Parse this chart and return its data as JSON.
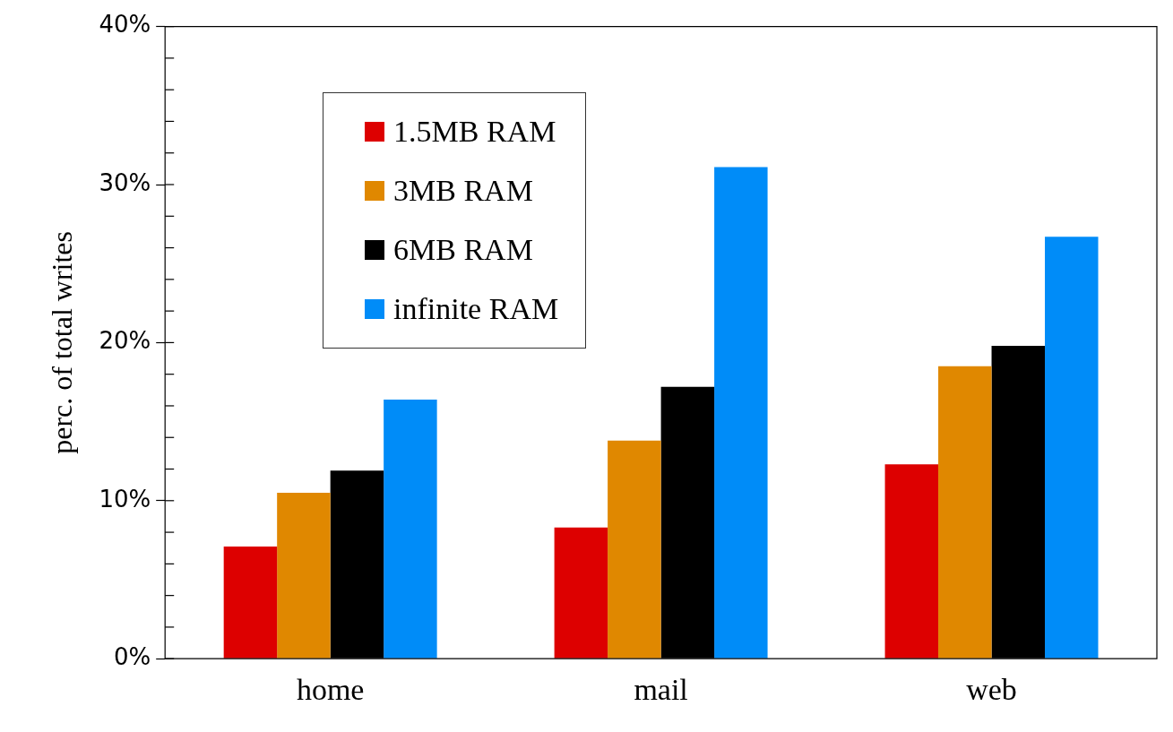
{
  "chart_data": {
    "type": "bar",
    "ylabel": "perc. of total writes",
    "categories": [
      "home",
      "mail",
      "web"
    ],
    "series": [
      {
        "name": "1.5MB RAM",
        "color": "#dd0000",
        "values": [
          7.1,
          8.3,
          12.3
        ]
      },
      {
        "name": "3MB RAM",
        "color": "#e08800",
        "values": [
          10.5,
          13.8,
          18.5
        ]
      },
      {
        "name": "6MB RAM",
        "color": "#000000",
        "values": [
          11.9,
          17.2,
          19.8
        ]
      },
      {
        "name": "infinite RAM",
        "color": "#008cf8",
        "values": [
          16.4,
          31.1,
          26.7
        ]
      }
    ],
    "ylim": [
      0,
      40
    ],
    "yticks": [
      {
        "value": 0,
        "label": "0%"
      },
      {
        "value": 2,
        "label": null
      },
      {
        "value": 4,
        "label": null
      },
      {
        "value": 6,
        "label": null
      },
      {
        "value": 8,
        "label": null
      },
      {
        "value": 10,
        "label": "10%"
      },
      {
        "value": 12,
        "label": null
      },
      {
        "value": 14,
        "label": null
      },
      {
        "value": 16,
        "label": null
      },
      {
        "value": 18,
        "label": null
      },
      {
        "value": 20,
        "label": "20%"
      },
      {
        "value": 22,
        "label": null
      },
      {
        "value": 24,
        "label": null
      },
      {
        "value": 26,
        "label": null
      },
      {
        "value": 28,
        "label": null
      },
      {
        "value": 30,
        "label": "30%"
      },
      {
        "value": 32,
        "label": null
      },
      {
        "value": 34,
        "label": null
      },
      {
        "value": 36,
        "label": null
      },
      {
        "value": 38,
        "label": null
      },
      {
        "value": 40,
        "label": "40%"
      }
    ],
    "grid": false,
    "legend": "top left"
  }
}
